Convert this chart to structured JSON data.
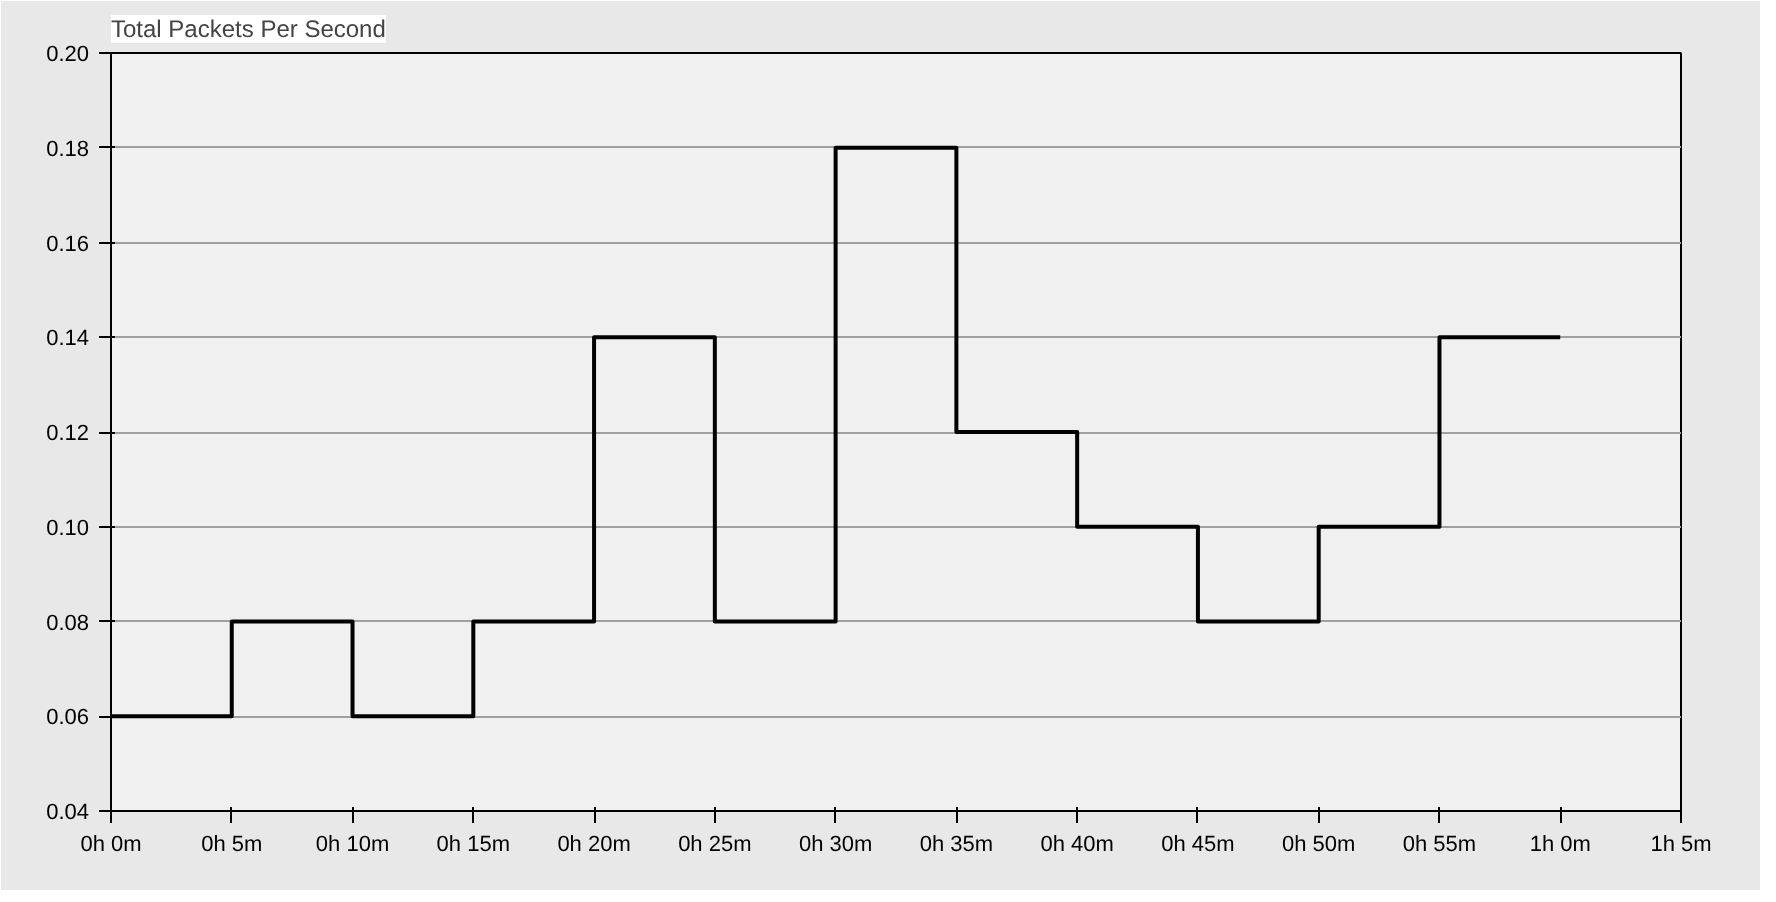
{
  "chart_data": {
    "type": "step",
    "title": "Total Packets Per Second",
    "categories": [
      "0h 0m",
      "0h 5m",
      "0h 10m",
      "0h 15m",
      "0h 20m",
      "0h 25m",
      "0h 30m",
      "0h 35m",
      "0h 40m",
      "0h 45m",
      "0h 50m",
      "0h 55m",
      "1h 0m",
      "1h 5m"
    ],
    "series": [
      {
        "color": "#000000",
        "values": [
          0.06,
          0.08,
          0.06,
          0.08,
          0.14,
          0.08,
          0.18,
          0.12,
          0.1,
          0.08,
          0.1,
          0.14,
          0.14,
          null
        ]
      }
    ],
    "ylim": [
      0.04,
      0.2
    ],
    "yticks": [
      {
        "value": 0.04,
        "label": "0.04"
      },
      {
        "value": 0.06,
        "label": "0.06"
      },
      {
        "value": 0.08,
        "label": "0.08"
      },
      {
        "value": 0.1,
        "label": "0.10"
      },
      {
        "value": 0.12,
        "label": "0.12"
      },
      {
        "value": 0.14,
        "label": "0.14"
      },
      {
        "value": 0.16,
        "label": "0.16"
      },
      {
        "value": 0.18,
        "label": "0.18"
      },
      {
        "value": 0.2,
        "label": "0.20"
      }
    ],
    "grid": "y"
  }
}
